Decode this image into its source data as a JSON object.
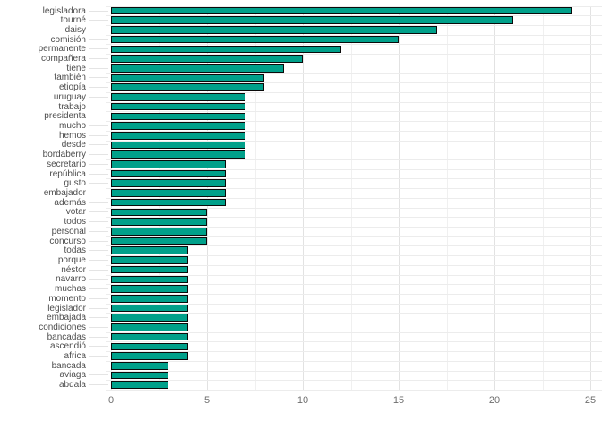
{
  "chart_data": {
    "type": "bar",
    "orientation": "horizontal",
    "title": "",
    "xlabel": "",
    "ylabel": "",
    "categories": [
      "legisladora",
      "tourné",
      "daisy",
      "comisión",
      "permanente",
      "compañera",
      "tiene",
      "también",
      "etiopía",
      "uruguay",
      "trabajo",
      "presidenta",
      "mucho",
      "hemos",
      "desde",
      "bordaberry",
      "secretario",
      "república",
      "gusto",
      "embajador",
      "además",
      "votar",
      "todos",
      "personal",
      "concurso",
      "todas",
      "porque",
      "néstor",
      "navarro",
      "muchas",
      "momento",
      "legislador",
      "embajada",
      "condiciones",
      "bancadas",
      "ascendió",
      "africa",
      "bancada",
      "aviaga",
      "abdala"
    ],
    "values": [
      24,
      21,
      17,
      15,
      12,
      10,
      9,
      8,
      8,
      7,
      7,
      7,
      7,
      7,
      7,
      7,
      6,
      6,
      6,
      6,
      6,
      5,
      5,
      5,
      5,
      4,
      4,
      4,
      4,
      4,
      4,
      4,
      4,
      4,
      4,
      4,
      4,
      3,
      3,
      3
    ],
    "xlim": [
      0,
      25
    ],
    "x_major_ticks": [
      0,
      5,
      10,
      15,
      20,
      25
    ],
    "x_minor_ticks": [
      2.5,
      7.5,
      12.5,
      17.5,
      22.5
    ],
    "x_tick_labels": [
      "0",
      "5",
      "10",
      "15",
      "20",
      "25"
    ],
    "grid": true,
    "legend_position": "none",
    "colors": {
      "bar_fill": "#00A08A",
      "bar_stroke": "#0a0a0a",
      "grid_major": "#e2e2e2",
      "grid_minor": "#f0f0f0",
      "axis_text_y": "#4d4d4d",
      "axis_text_x": "#6e6e6e",
      "background": "#ffffff"
    }
  }
}
